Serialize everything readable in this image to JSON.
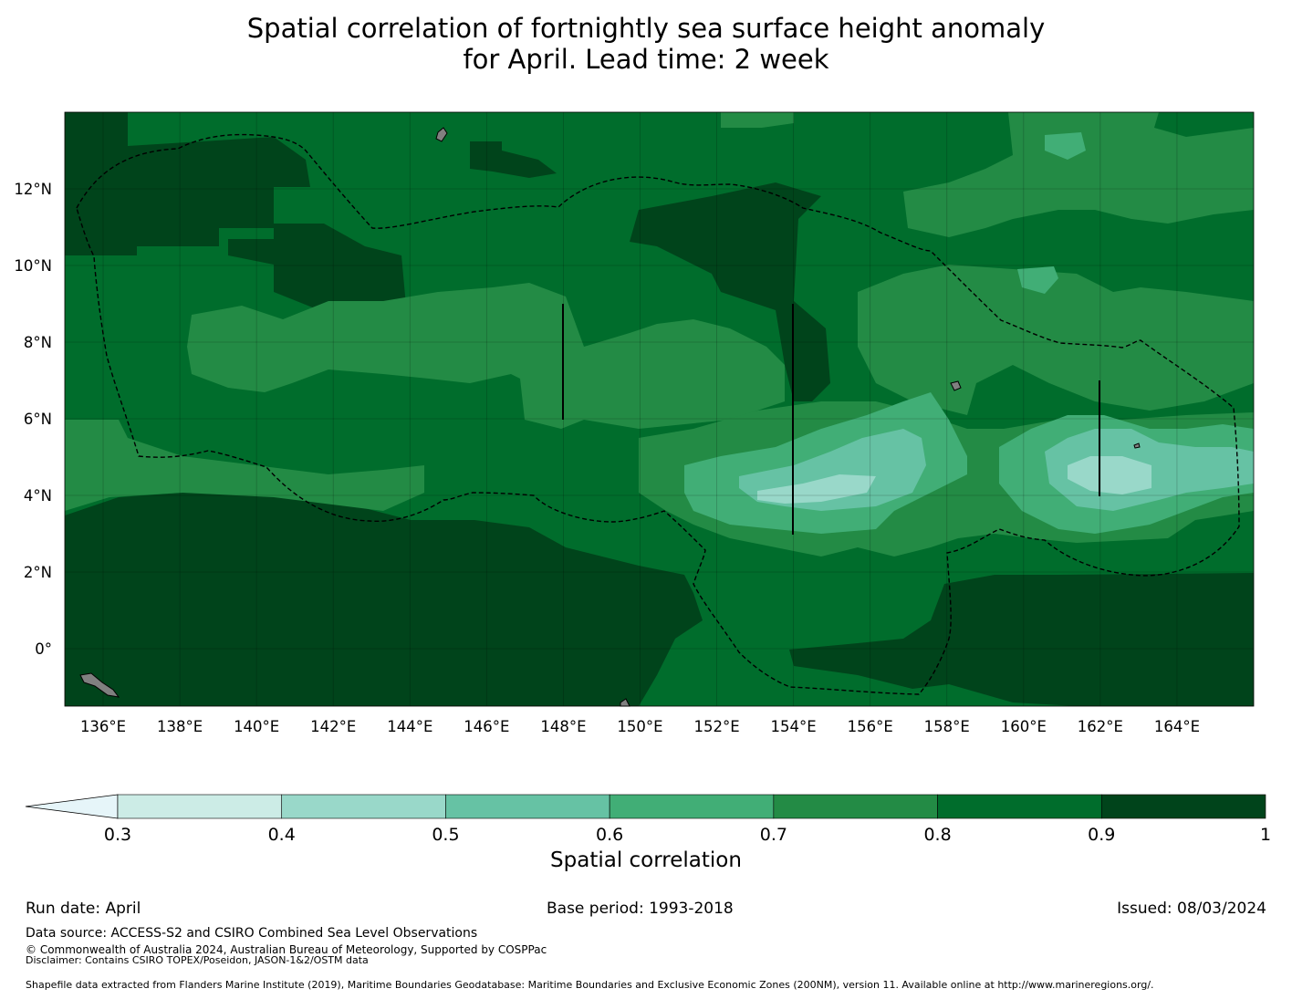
{
  "title": {
    "line1": "Spatial correlation of fortnightly sea surface height anomaly",
    "line2": "for April. Lead time: 2 week"
  },
  "map": {
    "lon_range": [
      135,
      166
    ],
    "lat_range": [
      -1.5,
      14
    ],
    "lon_ticks": [
      "136°E",
      "138°E",
      "140°E",
      "142°E",
      "144°E",
      "146°E",
      "148°E",
      "150°E",
      "152°E",
      "154°E",
      "156°E",
      "158°E",
      "160°E",
      "162°E",
      "164°E"
    ],
    "lat_ticks": [
      "12°N",
      "10°N",
      "8°N",
      "6°N",
      "4°N",
      "2°N",
      "0°"
    ],
    "land_color": "#808080",
    "boundary_style": "dashed"
  },
  "colorbar": {
    "label": "Spatial correlation",
    "tick_labels": [
      "0.3",
      "0.4",
      "0.5",
      "0.6",
      "0.7",
      "0.8",
      "0.9",
      "1"
    ],
    "under_color": "#e6f5f9",
    "colors": [
      "#ccece6",
      "#99d8c9",
      "#66c2a4",
      "#41ae76",
      "#238b45",
      "#006d2c",
      "#00441b"
    ]
  },
  "footer": {
    "run_date": "Run date: April",
    "base_period": "Base period: 1993-2018",
    "issued": "Issued: 08/03/2024",
    "data_source": "Data source: ACCESS-S2 and CSIRO Combined Sea Level Observations",
    "copyright": "© Commonwealth of Australia 2024, Australian Bureau of Meteorology, Supported by COSPPac",
    "disclaimer": "Disclaimer: Contains CSIRO TOPEX/Poseidon, JASON-1&2/OSTM data",
    "shapefile": "Shapefile data extracted from Flanders Marine Institute (2019), Maritime Boundaries Geodatabase: Maritime Boundaries and Exclusive Economic Zones (200NM), version 11. Available online at http://www.marineregions.org/."
  }
}
